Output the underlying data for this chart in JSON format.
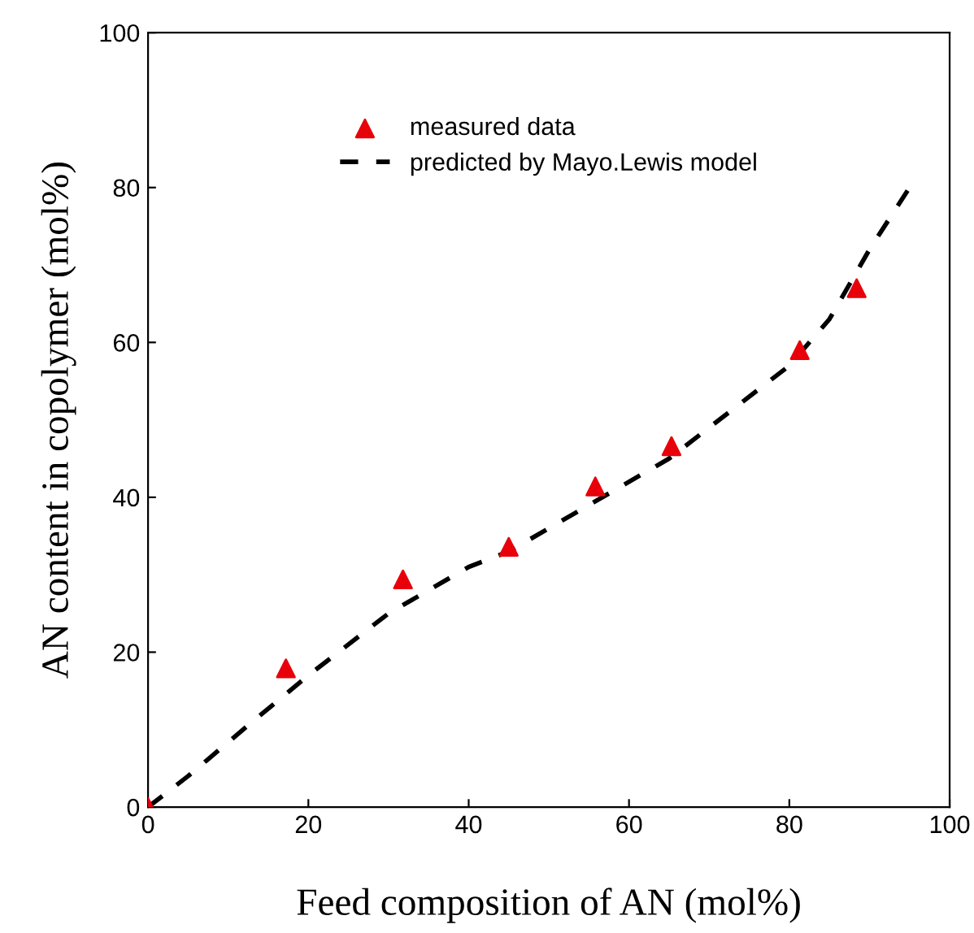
{
  "chart_data": {
    "type": "scatter",
    "xlabel": "Feed composition of AN (mol%)",
    "ylabel": "AN content in copolymer (mol%)",
    "xlim": [
      0,
      100
    ],
    "ylim": [
      0,
      100
    ],
    "xticks": [
      0,
      20,
      40,
      60,
      80,
      100
    ],
    "yticks": [
      0,
      20,
      40,
      60,
      80,
      100
    ],
    "grid": false,
    "legend": "top",
    "series": [
      {
        "name": "measured data",
        "color": "#e8000b",
        "marker": "triangle",
        "x": [
          0,
          17.2,
          31.8,
          45.0,
          55.8,
          65.3,
          81.3,
          88.4
        ],
        "values": [
          0,
          17.9,
          29.4,
          33.6,
          41.4,
          46.6,
          59.0,
          67.0
        ]
      },
      {
        "name": "predicted by Mayo.Lewis model",
        "type": "line",
        "color": "#000000",
        "line_style": "dashed",
        "marker": "none",
        "x": [
          0,
          5,
          13,
          20,
          30,
          40,
          45,
          55,
          65,
          70,
          80,
          85,
          90,
          95
        ],
        "values": [
          0,
          4,
          11,
          17,
          25,
          31,
          33,
          39,
          45,
          49,
          57,
          63,
          72,
          80
        ]
      }
    ]
  }
}
